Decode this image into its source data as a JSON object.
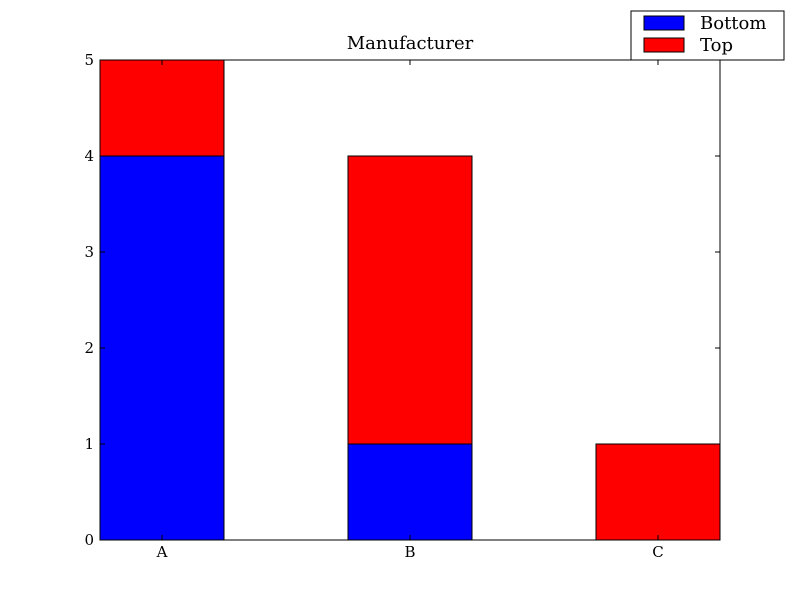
{
  "chart_data": {
    "type": "bar",
    "stacked": true,
    "title": "Manufacturer",
    "categories": [
      "A",
      "B",
      "C"
    ],
    "series": [
      {
        "name": "Bottom",
        "color": "#0000ff",
        "values": [
          4,
          1,
          0
        ]
      },
      {
        "name": "Top",
        "color": "#ff0000",
        "values": [
          1,
          3,
          1
        ]
      }
    ],
    "xlabel": "",
    "ylabel": "",
    "ylim": [
      0,
      5
    ],
    "yticks": [
      "0",
      "1",
      "2",
      "3",
      "4",
      "5"
    ],
    "grid": false,
    "legend_position": "top-right"
  }
}
